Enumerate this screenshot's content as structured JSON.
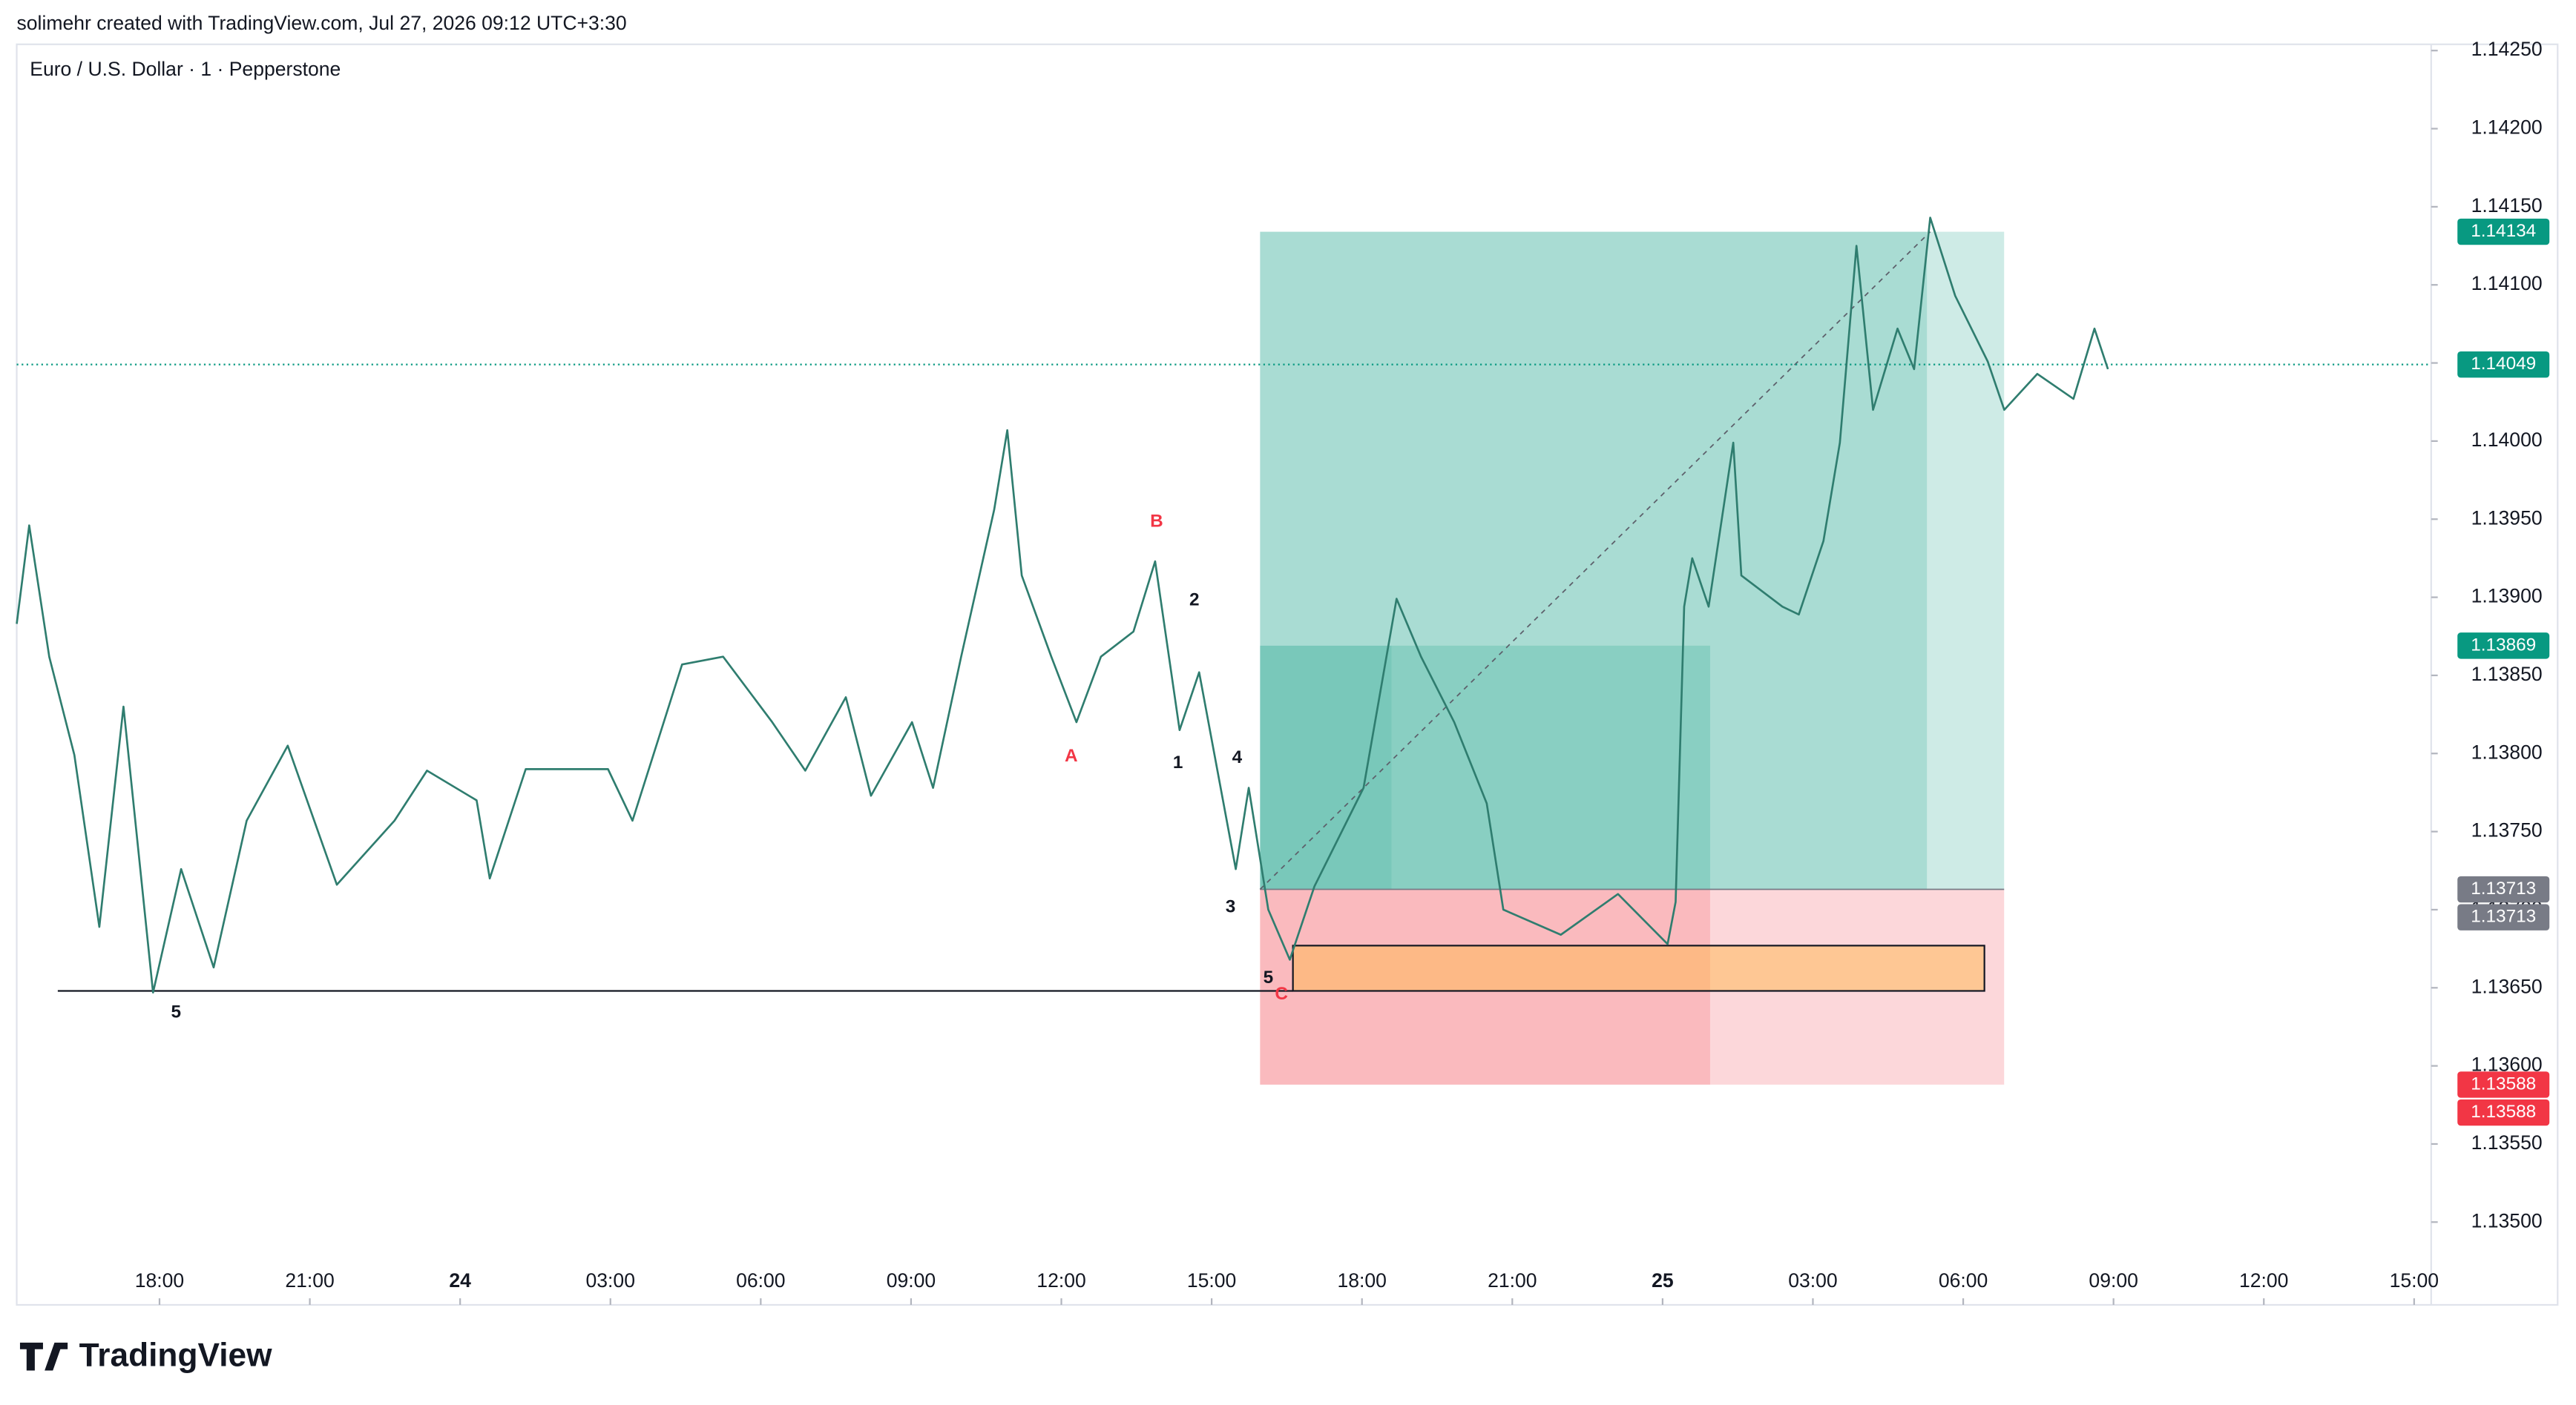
{
  "chart_data": {
    "type": "line",
    "caption": "solimehr created with TradingView.com, Jul 27, 2026 09:12 UTC+3:30",
    "title": "Euro / U.S. Dollar · 1 · Pepperstone",
    "brand": "TradingView",
    "xlim": [
      -2.85,
      45.34
    ],
    "xticks": [
      {
        "value": 0,
        "label": "18:00"
      },
      {
        "value": 3,
        "label": "21:00"
      },
      {
        "value": 6,
        "label": "24"
      },
      {
        "value": 9,
        "label": "03:00"
      },
      {
        "value": 12,
        "label": "06:00"
      },
      {
        "value": 15,
        "label": "09:00"
      },
      {
        "value": 18,
        "label": "12:00"
      },
      {
        "value": 21,
        "label": "15:00"
      },
      {
        "value": 24,
        "label": "18:00"
      },
      {
        "value": 27,
        "label": "21:00"
      },
      {
        "value": 30,
        "label": "25"
      },
      {
        "value": 33,
        "label": "03:00"
      },
      {
        "value": 36,
        "label": "06:00"
      },
      {
        "value": 39,
        "label": "09:00"
      },
      {
        "value": 42,
        "label": "12:00"
      },
      {
        "value": 45,
        "label": "15:00"
      }
    ],
    "ylim": [
      1.13447,
      1.14254
    ],
    "yticks": [
      {
        "value": 1.1425,
        "label": "1.14250"
      },
      {
        "value": 1.142,
        "label": "1.14200"
      },
      {
        "value": 1.1415,
        "label": "1.14150"
      },
      {
        "value": 1.141,
        "label": "1.14100"
      },
      {
        "value": 1.1405,
        "label": "1.14050"
      },
      {
        "value": 1.14,
        "label": "1.14000"
      },
      {
        "value": 1.1395,
        "label": "1.13950"
      },
      {
        "value": 1.139,
        "label": "1.13900"
      },
      {
        "value": 1.1385,
        "label": "1.13850"
      },
      {
        "value": 1.138,
        "label": "1.13800"
      },
      {
        "value": 1.1375,
        "label": "1.13750"
      },
      {
        "value": 1.137,
        "label": "1.13700"
      },
      {
        "value": 1.1365,
        "label": "1.13650"
      },
      {
        "value": 1.136,
        "label": "1.13600"
      },
      {
        "value": 1.1355,
        "label": "1.13550"
      },
      {
        "value": 1.135,
        "label": "1.13500"
      }
    ],
    "grid": false,
    "series": [
      {
        "name": "EURUSD",
        "color": "#2f7d6f",
        "x": [
          -2.85,
          -2.6,
          -2.2,
          -1.7,
          -1.2,
          -0.72,
          -0.13,
          0.43,
          1.08,
          1.74,
          2.56,
          3.54,
          4.69,
          5.34,
          6.33,
          6.59,
          7.31,
          8.95,
          9.44,
          10.43,
          11.25,
          12.23,
          12.89,
          13.7,
          14.2,
          15.02,
          15.44,
          16.0,
          16.66,
          16.92,
          17.21,
          17.8,
          18.3,
          18.79,
          19.44,
          19.87,
          20.36,
          20.75,
          21.48,
          21.74,
          22.13,
          22.56,
          23.05,
          24.03,
          24.69,
          25.18,
          25.84,
          26.49,
          26.82,
          27.97,
          29.11,
          30.1,
          30.26,
          30.43,
          30.59,
          30.92,
          31.41,
          31.57,
          32.39,
          32.72,
          33.21,
          33.54,
          33.87,
          34.2,
          34.69,
          35.02,
          35.34,
          35.84,
          36.49,
          36.82,
          37.48,
          38.2,
          38.62,
          38.89
        ],
        "values": [
          1.13883,
          1.13946,
          1.13862,
          1.13799,
          1.13689,
          1.1383,
          1.13647,
          1.13726,
          1.13663,
          1.13757,
          1.13805,
          1.13716,
          1.13757,
          1.13789,
          1.1377,
          1.1372,
          1.1379,
          1.1379,
          1.13757,
          1.13857,
          1.13862,
          1.1382,
          1.13789,
          1.13836,
          1.13773,
          1.1382,
          1.13778,
          1.13862,
          1.13956,
          1.14007,
          1.13914,
          1.13862,
          1.1382,
          1.13862,
          1.13878,
          1.13923,
          1.13815,
          1.13852,
          1.13726,
          1.13778,
          1.137,
          1.13668,
          1.13715,
          1.13778,
          1.13899,
          1.13862,
          1.1382,
          1.13768,
          1.137,
          1.13684,
          1.1371,
          1.13678,
          1.13705,
          1.13894,
          1.13925,
          1.13894,
          1.13999,
          1.13914,
          1.13894,
          1.13889,
          1.13936,
          1.13999,
          1.14125,
          1.1402,
          1.14072,
          1.14046,
          1.14143,
          1.14093,
          1.14051,
          1.1402,
          1.14043,
          1.14027,
          1.14072,
          1.14046
        ]
      }
    ],
    "position": {
      "entry": 1.13713,
      "target": 1.14134,
      "stop": 1.13588,
      "level": 1.13869
    },
    "last_price": 1.14049,
    "support": 1.13648,
    "zone": [
      1.13648,
      1.13677
    ],
    "annotations": [
      {
        "text": "5",
        "color": "#131722"
      },
      {
        "text": "A",
        "color": "#f23645"
      },
      {
        "text": "B",
        "color": "#f23645"
      },
      {
        "text": "1",
        "color": "#131722"
      },
      {
        "text": "2",
        "color": "#131722"
      },
      {
        "text": "3",
        "color": "#131722"
      },
      {
        "text": "4",
        "color": "#131722"
      },
      {
        "text": "5",
        "color": "#131722"
      },
      {
        "text": "C",
        "color": "#f23645"
      }
    ],
    "badges": [
      {
        "value": 1.14134,
        "color": "#089981"
      },
      {
        "value": 1.14049,
        "color": "#089981"
      },
      {
        "value": 1.13869,
        "color": "#089981"
      },
      {
        "value": 1.13713,
        "color": "#787b86"
      },
      {
        "value": 1.13713,
        "color": "#787b86"
      },
      {
        "value": 1.13588,
        "color": "#f23645"
      },
      {
        "value": 1.13588,
        "color": "#f23645"
      }
    ]
  }
}
